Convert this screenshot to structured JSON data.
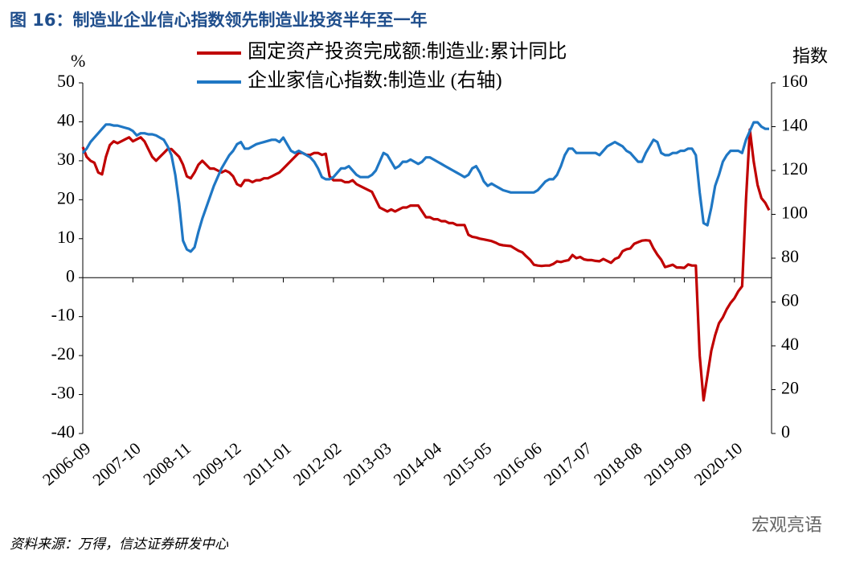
{
  "chart_data": {
    "type": "line",
    "title": "图 16：制造业企业信心指数领先制造业投资半年至一年",
    "y_label": "%",
    "y2_label": "指数",
    "source": "资料来源：万得，信达证券研发中心",
    "watermark": "宏观亮语",
    "categories": [
      "2006-09",
      null,
      null,
      null,
      null,
      null,
      null,
      null,
      null,
      null,
      null,
      null,
      null,
      "2007-10",
      null,
      null,
      null,
      null,
      null,
      null,
      null,
      null,
      null,
      null,
      null,
      null,
      "2008-11",
      null,
      null,
      null,
      null,
      null,
      null,
      null,
      null,
      null,
      null,
      null,
      null,
      "2009-12",
      null,
      null,
      null,
      null,
      null,
      null,
      null,
      null,
      null,
      null,
      null,
      null,
      "2011-01",
      null,
      null,
      null,
      null,
      null,
      null,
      null,
      null,
      null,
      null,
      null,
      null,
      "2012-02",
      null,
      null,
      null,
      null,
      null,
      null,
      null,
      null,
      null,
      null,
      null,
      null,
      "2013-03",
      null,
      null,
      null,
      null,
      null,
      null,
      null,
      null,
      null,
      null,
      null,
      null,
      "2014-04",
      null,
      null,
      null,
      null,
      null,
      null,
      null,
      null,
      null,
      null,
      null,
      null,
      "2015-05",
      null,
      null,
      null,
      null,
      null,
      null,
      null,
      null,
      null,
      null,
      null,
      null,
      "2016-06",
      null,
      null,
      null,
      null,
      null,
      null,
      null,
      null,
      null,
      null,
      null,
      null,
      "2017-07",
      null,
      null,
      null,
      null,
      null,
      null,
      null,
      null,
      null,
      null,
      null,
      null,
      "2018-08",
      null,
      null,
      null,
      null,
      null,
      null,
      null,
      null,
      null,
      null,
      null,
      null,
      "2019-09",
      null,
      null,
      null,
      null,
      null,
      null,
      null,
      null,
      null,
      null,
      null,
      null,
      "2020-10",
      null,
      null,
      null,
      null,
      null,
      null,
      null,
      null,
      null
    ],
    "series": [
      {
        "name": "固定资产投资完成额:制造业:累计同比",
        "color": "#c00000",
        "axis": "y",
        "values": [
          33.5,
          31,
          30,
          29.5,
          27,
          26.5,
          31,
          34,
          35,
          34.5,
          35,
          35.5,
          36,
          35,
          35.5,
          36,
          35,
          33,
          31,
          30,
          31,
          32,
          33,
          33,
          32,
          31,
          29,
          26,
          25.5,
          27,
          29,
          30,
          29,
          28,
          28,
          27.5,
          27,
          27.5,
          27,
          26,
          24,
          23.5,
          25,
          25,
          24.5,
          25,
          25,
          25.5,
          25.5,
          26,
          26.5,
          27,
          28,
          29,
          30,
          31,
          32,
          32,
          31.5,
          31.5,
          32,
          32,
          31.5,
          31.8,
          26,
          25,
          25,
          25,
          24.5,
          24.5,
          25,
          24,
          23.5,
          23,
          22.5,
          22,
          20,
          18,
          17.5,
          17,
          17.5,
          17,
          17.5,
          18,
          18,
          18.5,
          18.5,
          18.5,
          17,
          15.5,
          15.5,
          15,
          15,
          14.5,
          14.5,
          14,
          14,
          13.5,
          13.5,
          13.5,
          11,
          10.5,
          10.3,
          10,
          9.8,
          9.6,
          9.4,
          9,
          8.5,
          8.3,
          8.2,
          8.1,
          7.5,
          6.9,
          6.5,
          5.5,
          4.6,
          3.3,
          3.1,
          3,
          3.1,
          3.1,
          3.5,
          4.2,
          4,
          4.3,
          4.5,
          5.8,
          5,
          5.3,
          4.7,
          4.5,
          4.5,
          4.3,
          4.2,
          4.8,
          4.3,
          3.8,
          4.8,
          5.2,
          6.8,
          7.3,
          7.5,
          8.7,
          9.1,
          9.5,
          9.6,
          9.5,
          7.5,
          5.9,
          4.6,
          2.7,
          3,
          3.3,
          2.6,
          2.6,
          2.5,
          3.4,
          3.1,
          3.1,
          -20,
          -31.5,
          -25.2,
          -18.8,
          -14.8,
          -11.7,
          -10.2,
          -8.1,
          -6.5,
          -5.3,
          -3.5,
          -2.2,
          20,
          38,
          29.8,
          23.8,
          20.4,
          19.2,
          17.3
        ]
      },
      {
        "name": "企业家信心指数:制造业 (右轴)",
        "color": "#1f77c4",
        "axis": "y2",
        "values": [
          128,
          130,
          133,
          135,
          137,
          139,
          141,
          141,
          140.5,
          140.5,
          140,
          139.5,
          139,
          138,
          136,
          137,
          137,
          136.5,
          136.5,
          136,
          135,
          134,
          131,
          127,
          118,
          105,
          88,
          84,
          83,
          85,
          92,
          98,
          103,
          108,
          113,
          117,
          121,
          124,
          127,
          129,
          132,
          133,
          130,
          130,
          131,
          132,
          132.5,
          133,
          133.5,
          134,
          134,
          133,
          135,
          132,
          129,
          128,
          129,
          128,
          127,
          126,
          124,
          121,
          117,
          116,
          116,
          117,
          119,
          121,
          121,
          122,
          120,
          118,
          117,
          117,
          117,
          118,
          120,
          124,
          128,
          127,
          124,
          121,
          122,
          124,
          124,
          125,
          124,
          123,
          124,
          126,
          126,
          125,
          124,
          123,
          122,
          121,
          120,
          119,
          118,
          117,
          118,
          121,
          122,
          119,
          115,
          113,
          114,
          113,
          112,
          111,
          110.5,
          110,
          110,
          110,
          110,
          110,
          110,
          110,
          111,
          113,
          115,
          116,
          116,
          118,
          122,
          127,
          130,
          130,
          128,
          128,
          128,
          128,
          128,
          128,
          127,
          129,
          131,
          132,
          133,
          132,
          131,
          129,
          128,
          126,
          124,
          124,
          128,
          131,
          134,
          133,
          128,
          127,
          127,
          128,
          128,
          129,
          129,
          130,
          130,
          127,
          110,
          96,
          95,
          103,
          113,
          118,
          124,
          127,
          129,
          129,
          129,
          128,
          134,
          138,
          142,
          142,
          140,
          139,
          139
        ]
      }
    ],
    "ylim": [
      -40,
      50
    ],
    "yticks": [
      -40,
      -30,
      -20,
      -10,
      0,
      10,
      20,
      30,
      40,
      50
    ],
    "y2lim": [
      0,
      160
    ],
    "y2ticks": [
      0,
      20,
      40,
      60,
      80,
      100,
      120,
      140,
      160
    ],
    "legend": "top"
  }
}
